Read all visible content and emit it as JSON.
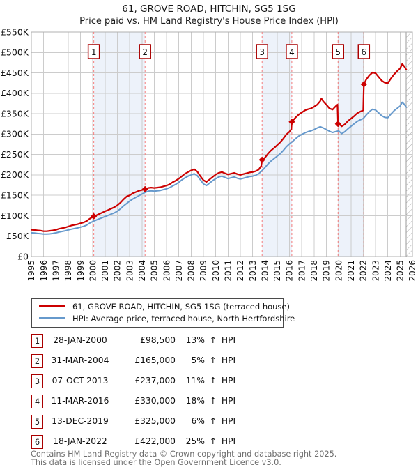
{
  "title": "61, GROVE ROAD, HITCHIN, SG5 1SG",
  "subtitle": "Price paid vs. HM Land Registry's House Price Index (HPI)",
  "chart_data": {
    "type": "line",
    "x_range": [
      1995,
      2026
    ],
    "y_range_k": [
      0,
      550
    ],
    "y_unit": "GBP thousands",
    "y_tick_step_k": 50,
    "y_tick_labels": [
      "£0",
      "£50K",
      "£100K",
      "£150K",
      "£200K",
      "£250K",
      "£300K",
      "£350K",
      "£400K",
      "£450K",
      "£500K",
      "£550K"
    ],
    "x_ticks": [
      1995,
      1996,
      1997,
      1998,
      1999,
      2000,
      2001,
      2002,
      2003,
      2004,
      2005,
      2006,
      2007,
      2008,
      2009,
      2010,
      2011,
      2012,
      2013,
      2014,
      2015,
      2016,
      2017,
      2018,
      2019,
      2020,
      2021,
      2022,
      2023,
      2024,
      2025,
      2026
    ],
    "grid": true,
    "legend_position": "bottom",
    "colors": {
      "property_line": "#cc0000",
      "hpi_line": "#6699cc",
      "sale_dashed_line": "#f47c7c",
      "shaded_band": "#edf2fa",
      "gridline": "#cccccc",
      "plot_border": "#b0b0b0",
      "marker_box_border": "#aa0000",
      "hatch": "#aaaaaa"
    },
    "shaded_bands": [
      [
        2000.08,
        2004.25
      ],
      [
        2013.77,
        2016.19
      ],
      [
        2019.95,
        2022.05
      ]
    ],
    "future_hatch_start": 2025.5,
    "series": [
      {
        "name": "61, GROVE ROAD, HITCHIN, SG5 1SG (terraced house)",
        "color": "#cc0000",
        "points": [
          [
            1995.0,
            65.5
          ],
          [
            1995.25,
            65
          ],
          [
            1995.5,
            64
          ],
          [
            1995.75,
            63.5
          ],
          [
            1996.0,
            62
          ],
          [
            1996.25,
            62
          ],
          [
            1996.5,
            63
          ],
          [
            1996.75,
            64
          ],
          [
            1997.0,
            65.5
          ],
          [
            1997.25,
            68
          ],
          [
            1997.5,
            69.5
          ],
          [
            1997.75,
            71
          ],
          [
            1998.0,
            73.5
          ],
          [
            1998.25,
            76
          ],
          [
            1998.5,
            77.5
          ],
          [
            1998.75,
            79
          ],
          [
            1999.0,
            81.5
          ],
          [
            1999.25,
            83.5
          ],
          [
            1999.5,
            87
          ],
          [
            1999.75,
            92.5
          ],
          [
            2000.0,
            97
          ],
          [
            2000.08,
            98.5
          ],
          [
            2000.25,
            100.5
          ],
          [
            2000.5,
            104
          ],
          [
            2000.75,
            107.5
          ],
          [
            2001.0,
            111
          ],
          [
            2001.25,
            114
          ],
          [
            2001.5,
            117.5
          ],
          [
            2001.75,
            121
          ],
          [
            2002.0,
            125.5
          ],
          [
            2002.25,
            132
          ],
          [
            2002.5,
            140
          ],
          [
            2002.75,
            147
          ],
          [
            2003.0,
            150
          ],
          [
            2003.25,
            155
          ],
          [
            2003.5,
            158
          ],
          [
            2003.75,
            161
          ],
          [
            2004.0,
            163
          ],
          [
            2004.25,
            165
          ],
          [
            2004.5,
            168
          ],
          [
            2004.75,
            169
          ],
          [
            2005.0,
            168
          ],
          [
            2005.25,
            169
          ],
          [
            2005.5,
            170
          ],
          [
            2005.75,
            172
          ],
          [
            2006.0,
            174
          ],
          [
            2006.25,
            177
          ],
          [
            2006.5,
            182
          ],
          [
            2006.75,
            186
          ],
          [
            2007.0,
            191
          ],
          [
            2007.25,
            197
          ],
          [
            2007.5,
            203
          ],
          [
            2007.75,
            207
          ],
          [
            2008.0,
            211
          ],
          [
            2008.25,
            214
          ],
          [
            2008.5,
            208
          ],
          [
            2008.75,
            197
          ],
          [
            2009.0,
            187
          ],
          [
            2009.25,
            183
          ],
          [
            2009.5,
            189
          ],
          [
            2009.75,
            195
          ],
          [
            2010.0,
            201
          ],
          [
            2010.25,
            205
          ],
          [
            2010.5,
            207
          ],
          [
            2010.75,
            204
          ],
          [
            2011.0,
            201
          ],
          [
            2011.25,
            203
          ],
          [
            2011.5,
            205
          ],
          [
            2011.75,
            202
          ],
          [
            2012.0,
            200
          ],
          [
            2012.25,
            202
          ],
          [
            2012.5,
            204
          ],
          [
            2012.75,
            206
          ],
          [
            2013.0,
            207
          ],
          [
            2013.25,
            209
          ],
          [
            2013.5,
            213
          ],
          [
            2013.7,
            222
          ],
          [
            2013.77,
            237
          ],
          [
            2014.0,
            242
          ],
          [
            2014.25,
            252
          ],
          [
            2014.5,
            260
          ],
          [
            2014.75,
            266
          ],
          [
            2015.0,
            273
          ],
          [
            2015.25,
            280
          ],
          [
            2015.5,
            289
          ],
          [
            2015.75,
            299
          ],
          [
            2016.0,
            306
          ],
          [
            2016.15,
            312
          ],
          [
            2016.19,
            330
          ],
          [
            2016.5,
            341
          ],
          [
            2016.75,
            348
          ],
          [
            2017.0,
            353
          ],
          [
            2017.25,
            358
          ],
          [
            2017.5,
            361
          ],
          [
            2017.75,
            363
          ],
          [
            2018.0,
            367
          ],
          [
            2018.25,
            372
          ],
          [
            2018.5,
            381
          ],
          [
            2018.6,
            387
          ],
          [
            2018.75,
            380
          ],
          [
            2019.0,
            372
          ],
          [
            2019.25,
            363
          ],
          [
            2019.5,
            360
          ],
          [
            2019.75,
            368
          ],
          [
            2019.9,
            372
          ],
          [
            2019.95,
            325
          ],
          [
            2020.0,
            326
          ],
          [
            2020.25,
            319
          ],
          [
            2020.5,
            324
          ],
          [
            2020.75,
            332
          ],
          [
            2021.0,
            338
          ],
          [
            2021.25,
            344
          ],
          [
            2021.5,
            351
          ],
          [
            2021.75,
            355
          ],
          [
            2022.0,
            358
          ],
          [
            2022.05,
            422
          ],
          [
            2022.25,
            434
          ],
          [
            2022.5,
            444
          ],
          [
            2022.75,
            451
          ],
          [
            2023.0,
            449
          ],
          [
            2023.25,
            440
          ],
          [
            2023.5,
            431
          ],
          [
            2023.75,
            426
          ],
          [
            2024.0,
            425
          ],
          [
            2024.25,
            436
          ],
          [
            2024.5,
            446
          ],
          [
            2024.75,
            454
          ],
          [
            2025.0,
            461
          ],
          [
            2025.17,
            472
          ],
          [
            2025.33,
            466
          ],
          [
            2025.5,
            458
          ]
        ]
      },
      {
        "name": "HPI: Average price, terraced house, North Hertfordshire",
        "color": "#6699cc",
        "points": [
          [
            1995.0,
            58
          ],
          [
            1995.25,
            57.5
          ],
          [
            1995.5,
            56.5
          ],
          [
            1995.75,
            56
          ],
          [
            1996.0,
            55
          ],
          [
            1996.25,
            55
          ],
          [
            1996.5,
            55.5
          ],
          [
            1996.75,
            56.5
          ],
          [
            1997.0,
            58
          ],
          [
            1997.25,
            60
          ],
          [
            1997.5,
            61.5
          ],
          [
            1997.75,
            63
          ],
          [
            1998.0,
            65
          ],
          [
            1998.25,
            67
          ],
          [
            1998.5,
            68.5
          ],
          [
            1998.75,
            70
          ],
          [
            1999.0,
            72
          ],
          [
            1999.25,
            74
          ],
          [
            1999.5,
            77
          ],
          [
            1999.75,
            82
          ],
          [
            2000.0,
            86
          ],
          [
            2000.25,
            89
          ],
          [
            2000.5,
            92
          ],
          [
            2000.75,
            95
          ],
          [
            2001.0,
            98
          ],
          [
            2001.25,
            101
          ],
          [
            2001.5,
            104
          ],
          [
            2001.75,
            107
          ],
          [
            2002.0,
            111
          ],
          [
            2002.25,
            117
          ],
          [
            2002.5,
            124
          ],
          [
            2002.75,
            130
          ],
          [
            2003.0,
            136
          ],
          [
            2003.25,
            141
          ],
          [
            2003.5,
            145
          ],
          [
            2003.75,
            149
          ],
          [
            2004.0,
            153
          ],
          [
            2004.25,
            157
          ],
          [
            2004.5,
            160
          ],
          [
            2004.75,
            161
          ],
          [
            2005.0,
            160
          ],
          [
            2005.25,
            161
          ],
          [
            2005.5,
            162
          ],
          [
            2005.75,
            164
          ],
          [
            2006.0,
            166
          ],
          [
            2006.25,
            169
          ],
          [
            2006.5,
            173
          ],
          [
            2006.75,
            177
          ],
          [
            2007.0,
            182
          ],
          [
            2007.25,
            188
          ],
          [
            2007.5,
            193
          ],
          [
            2007.75,
            197
          ],
          [
            2008.0,
            200
          ],
          [
            2008.25,
            203
          ],
          [
            2008.5,
            198
          ],
          [
            2008.75,
            188
          ],
          [
            2009.0,
            178
          ],
          [
            2009.25,
            174
          ],
          [
            2009.5,
            180
          ],
          [
            2009.75,
            186
          ],
          [
            2010.0,
            191
          ],
          [
            2010.25,
            195
          ],
          [
            2010.5,
            197
          ],
          [
            2010.75,
            194
          ],
          [
            2011.0,
            191
          ],
          [
            2011.25,
            193
          ],
          [
            2011.5,
            195
          ],
          [
            2011.75,
            192
          ],
          [
            2012.0,
            190
          ],
          [
            2012.25,
            192
          ],
          [
            2012.5,
            194
          ],
          [
            2012.75,
            196
          ],
          [
            2013.0,
            197
          ],
          [
            2013.25,
            199
          ],
          [
            2013.5,
            203
          ],
          [
            2013.75,
            210
          ],
          [
            2014.0,
            218
          ],
          [
            2014.25,
            227
          ],
          [
            2014.5,
            234
          ],
          [
            2014.75,
            240
          ],
          [
            2015.0,
            246
          ],
          [
            2015.25,
            252
          ],
          [
            2015.5,
            260
          ],
          [
            2015.75,
            269
          ],
          [
            2016.0,
            276
          ],
          [
            2016.25,
            282
          ],
          [
            2016.5,
            289
          ],
          [
            2016.75,
            295
          ],
          [
            2017.0,
            299
          ],
          [
            2017.25,
            303
          ],
          [
            2017.5,
            306
          ],
          [
            2017.75,
            308
          ],
          [
            2018.0,
            311
          ],
          [
            2018.25,
            315
          ],
          [
            2018.5,
            318
          ],
          [
            2018.75,
            315
          ],
          [
            2019.0,
            311
          ],
          [
            2019.25,
            307
          ],
          [
            2019.5,
            304
          ],
          [
            2019.75,
            306
          ],
          [
            2020.0,
            308
          ],
          [
            2020.25,
            301
          ],
          [
            2020.5,
            306
          ],
          [
            2020.75,
            313
          ],
          [
            2021.0,
            319
          ],
          [
            2021.25,
            325
          ],
          [
            2021.5,
            331
          ],
          [
            2021.75,
            335
          ],
          [
            2022.0,
            338
          ],
          [
            2022.25,
            347
          ],
          [
            2022.5,
            355
          ],
          [
            2022.75,
            361
          ],
          [
            2023.0,
            359
          ],
          [
            2023.25,
            352
          ],
          [
            2023.5,
            345
          ],
          [
            2023.75,
            341
          ],
          [
            2024.0,
            340
          ],
          [
            2024.25,
            349
          ],
          [
            2024.5,
            357
          ],
          [
            2024.75,
            363
          ],
          [
            2025.0,
            369
          ],
          [
            2025.17,
            378
          ],
          [
            2025.33,
            373
          ],
          [
            2025.5,
            366
          ]
        ]
      }
    ],
    "sales": [
      {
        "num": "1",
        "date": "28-JAN-2000",
        "year": 2000.08,
        "price_k": 98.5,
        "price": "£98,500",
        "vs_hpi": "13% ↑ HPI"
      },
      {
        "num": "2",
        "date": "31-MAR-2004",
        "year": 2004.25,
        "price_k": 165,
        "price": "£165,000",
        "vs_hpi": "5% ↑ HPI"
      },
      {
        "num": "3",
        "date": "07-OCT-2013",
        "year": 2013.77,
        "price_k": 237,
        "price": "£237,000",
        "vs_hpi": "11% ↑ HPI"
      },
      {
        "num": "4",
        "date": "11-MAR-2016",
        "year": 2016.19,
        "price_k": 330,
        "price": "£330,000",
        "vs_hpi": "18% ↑ HPI"
      },
      {
        "num": "5",
        "date": "13-DEC-2019",
        "year": 2019.95,
        "price_k": 325,
        "price": "£325,000",
        "vs_hpi": "6% ↑ HPI"
      },
      {
        "num": "6",
        "date": "18-JAN-2022",
        "year": 2022.05,
        "price_k": 422,
        "price": "£422,000",
        "vs_hpi": "25% ↑ HPI"
      }
    ]
  },
  "legend": {
    "items": [
      {
        "label": "61, GROVE ROAD, HITCHIN, SG5 1SG (terraced house)",
        "color": "#cc0000"
      },
      {
        "label": "HPI: Average price, terraced house, North Hertfordshire",
        "color": "#6699cc"
      }
    ]
  },
  "table": {
    "rows": [
      {
        "num": "1",
        "date": "28-JAN-2000",
        "price": "£98,500",
        "pct": "13%",
        "arrow": "↑",
        "ref": "HPI"
      },
      {
        "num": "2",
        "date": "31-MAR-2004",
        "price": "£165,000",
        "pct": "5%",
        "arrow": "↑",
        "ref": "HPI"
      },
      {
        "num": "3",
        "date": "07-OCT-2013",
        "price": "£237,000",
        "pct": "11%",
        "arrow": "↑",
        "ref": "HPI"
      },
      {
        "num": "4",
        "date": "11-MAR-2016",
        "price": "£330,000",
        "pct": "18%",
        "arrow": "↑",
        "ref": "HPI"
      },
      {
        "num": "5",
        "date": "13-DEC-2019",
        "price": "£325,000",
        "pct": "6%",
        "arrow": "↑",
        "ref": "HPI"
      },
      {
        "num": "6",
        "date": "18-JAN-2022",
        "price": "£422,000",
        "pct": "25%",
        "arrow": "↑",
        "ref": "HPI"
      }
    ]
  },
  "footer": {
    "line1": "Contains HM Land Registry data © Crown copyright and database right 2025.",
    "line2": "This data is licensed under the Open Government Licence v3.0."
  }
}
